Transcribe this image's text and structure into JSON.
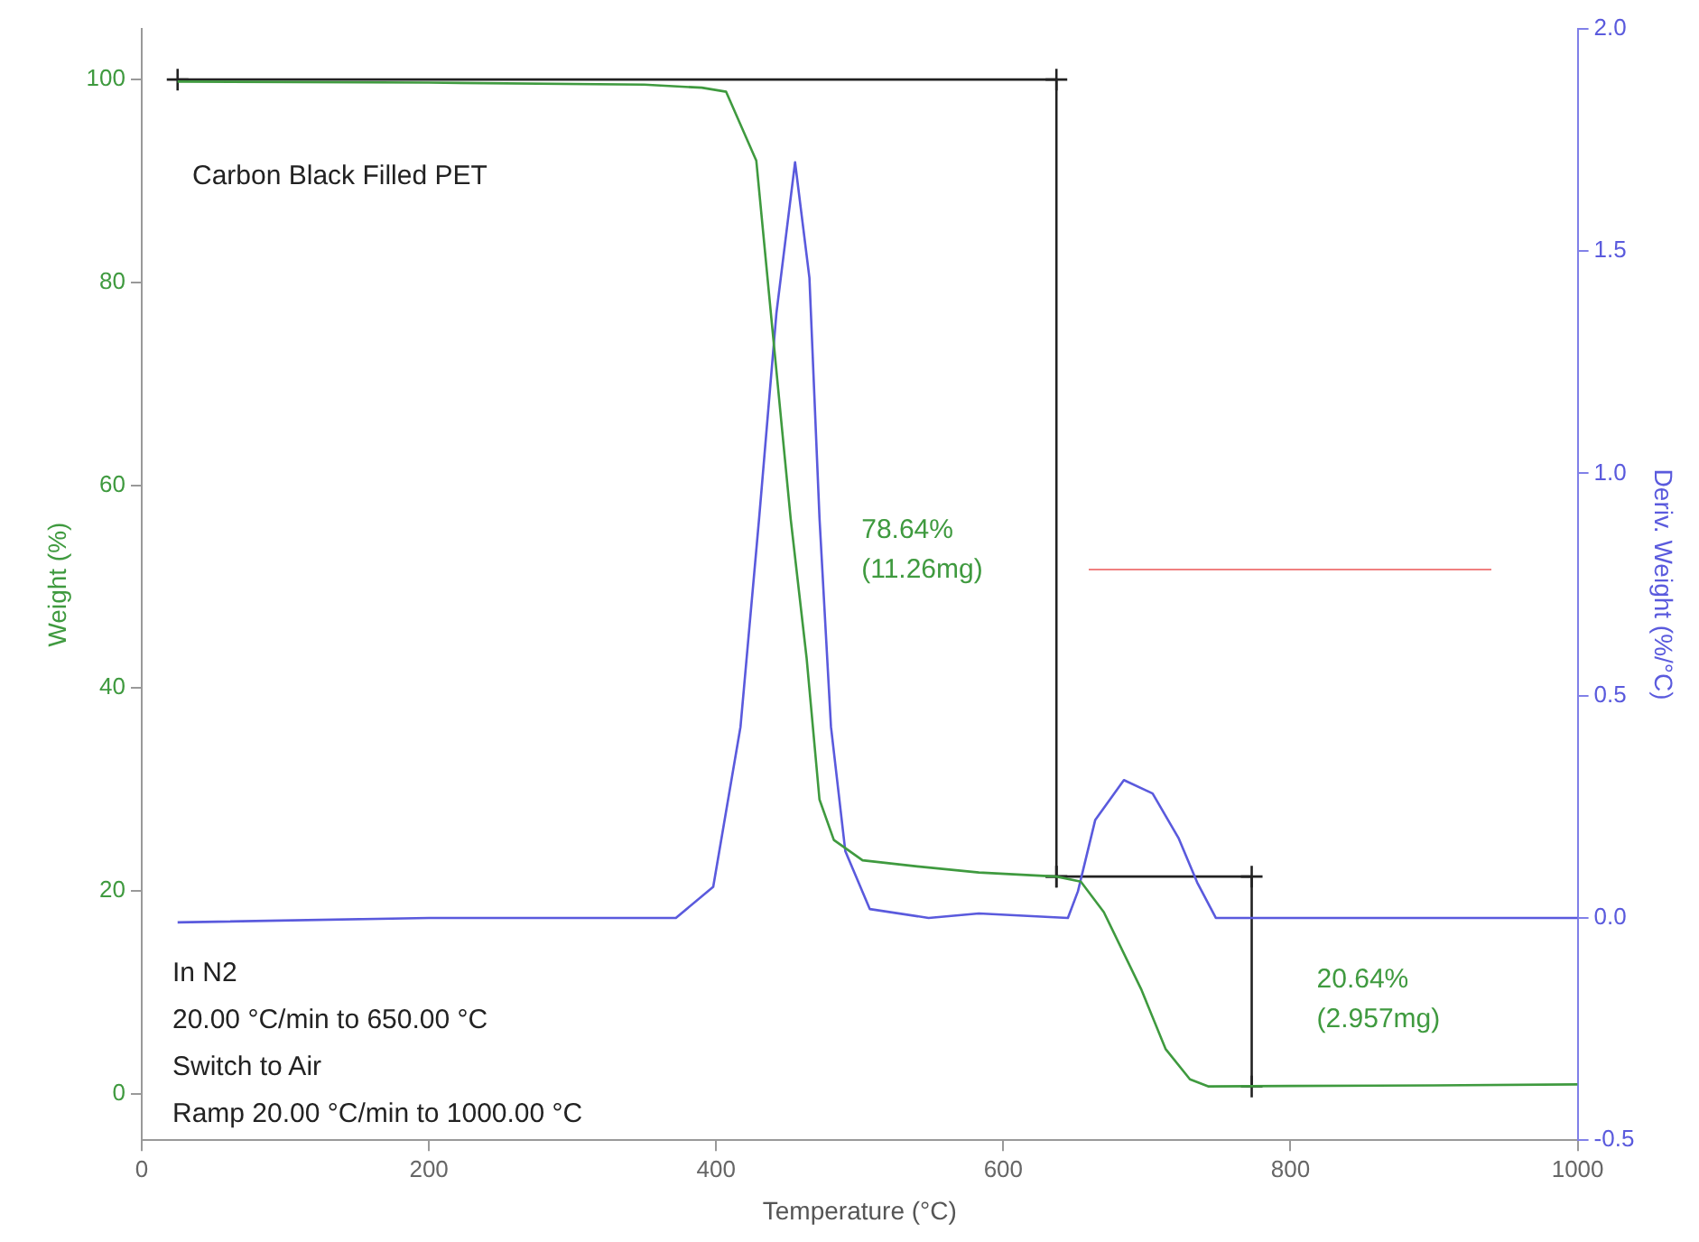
{
  "chart_data": {
    "type": "line",
    "title": "Carbon Black Filled PET",
    "xlabel": "Temperature (°C)",
    "ylabel": "Weight (%)",
    "y2label": "Deriv. Weight (%/°C)",
    "xlim": [
      0,
      1000
    ],
    "xticks": [
      0,
      200,
      400,
      600,
      800,
      1000
    ],
    "ylim": [
      -4.6,
      105
    ],
    "yticks": [
      0,
      20,
      40,
      60,
      80,
      100
    ],
    "y2lim": [
      -0.5,
      2
    ],
    "y2ticks": [
      {
        "value": -0.5,
        "label": "-0.5"
      },
      {
        "value": 0,
        "label": "0.0"
      },
      {
        "value": 0.5,
        "label": "0.5"
      },
      {
        "value": 1,
        "label": "1.0"
      },
      {
        "value": 1.5,
        "label": "1.5"
      },
      {
        "value": 2,
        "label": "2.0"
      }
    ],
    "grid": false,
    "legend": false,
    "marker": "none",
    "line_style": "solid",
    "series": [
      {
        "color": "#3f9a3f",
        "x": [
          25,
          200,
          350,
          390,
          407,
          428,
          439,
          452,
          463,
          472,
          482,
          502,
          540,
          583,
          637,
          654,
          670,
          696,
          713,
          730,
          743,
          800,
          900,
          1000
        ],
        "values": [
          99.8,
          99.7,
          99.5,
          99.2,
          98.8,
          92,
          75.7,
          56.6,
          43,
          29,
          25,
          23,
          22.4,
          21.8,
          21.4,
          20.9,
          17.9,
          10.3,
          4.4,
          1.4,
          0.7,
          0.75,
          0.8,
          0.9
        ]
      },
      {
        "color": "#5a5add",
        "axis": "y2",
        "x": [
          25,
          200,
          322,
          372,
          398,
          417,
          430,
          442,
          455,
          465,
          472,
          480,
          490,
          507,
          548,
          583,
          645,
          652,
          664,
          684,
          704,
          722,
          735,
          748,
          800,
          1000
        ],
        "values": [
          -0.01,
          0,
          0,
          0,
          0.07,
          0.43,
          0.9,
          1.36,
          1.7,
          1.44,
          0.9,
          0.43,
          0.15,
          0.02,
          0,
          0.01,
          0,
          0.06,
          0.22,
          0.31,
          0.28,
          0.18,
          0.08,
          0,
          0,
          0
        ]
      },
      {
        "color": "#222222",
        "marker": "cross",
        "x": [
          25,
          637,
          637
        ],
        "values": [
          100,
          100,
          21.4
        ]
      },
      {
        "color": "#222222",
        "marker": "cross",
        "x": [
          637,
          773,
          773
        ],
        "values": [
          21.4,
          21.4,
          0.7
        ]
      }
    ],
    "annotations": [
      "78.64%\n(11.26mg)",
      "20.64%\n(2.957mg)",
      "In N2",
      "20.00 °C/min to 650.00 °C",
      "Switch to Air",
      "Ramp 20.00 °C/min to 1000.00 °C"
    ]
  }
}
